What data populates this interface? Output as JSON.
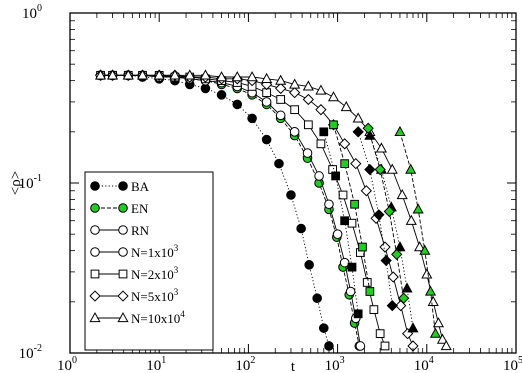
{
  "chart_data": {
    "type": "scatter",
    "xlabel": "t",
    "ylabel": "<ρ>",
    "xscale": "log",
    "yscale": "log",
    "xlim": [
      1,
      100000
    ],
    "ylim": [
      0.01,
      1
    ],
    "x_ticks": [
      {
        "base": "10",
        "exp": "0"
      },
      {
        "base": "10",
        "exp": "1"
      },
      {
        "base": "10",
        "exp": "2"
      },
      {
        "base": "10",
        "exp": "3"
      },
      {
        "base": "10",
        "exp": "4"
      },
      {
        "base": "10",
        "exp": "5"
      }
    ],
    "y_ticks": [
      {
        "base": "10",
        "exp": "-2"
      },
      {
        "base": "10",
        "exp": "-1"
      },
      {
        "base": "10",
        "exp": "0"
      }
    ],
    "legend_position": "bottom-left",
    "series": [
      {
        "name": "BA",
        "marker": "circle",
        "fill": "#000000",
        "line": "dotted",
        "x": [
          2.2,
          3,
          4.5,
          6.5,
          10,
          15,
          22,
          33,
          50,
          75,
          110,
          160,
          220,
          300,
          390,
          480,
          590,
          700,
          800
        ],
        "y": [
          0.43,
          0.43,
          0.43,
          0.42,
          0.41,
          0.4,
          0.38,
          0.36,
          0.33,
          0.29,
          0.24,
          0.18,
          0.13,
          0.085,
          0.054,
          0.033,
          0.021,
          0.014,
          0.011
        ]
      },
      {
        "name": "EN",
        "marker": "circle",
        "fill": "#22cc22",
        "line": "dashed",
        "x": [
          2.2,
          3,
          4.5,
          6.5,
          10,
          15,
          22,
          33,
          50,
          75,
          110,
          160,
          230,
          330,
          460,
          620,
          800,
          980,
          1150,
          1350,
          1550,
          1750
        ],
        "y": [
          0.43,
          0.43,
          0.43,
          0.43,
          0.42,
          0.42,
          0.41,
          0.4,
          0.38,
          0.36,
          0.33,
          0.29,
          0.24,
          0.19,
          0.14,
          0.1,
          0.07,
          0.048,
          0.032,
          0.022,
          0.015,
          0.011
        ]
      },
      {
        "name": "RN",
        "marker": "circle",
        "fill": "#ffffff",
        "line": "solid",
        "x": [
          2.2,
          3,
          4.5,
          6.5,
          10,
          15,
          22,
          33,
          50,
          75,
          110,
          160,
          230,
          330,
          460,
          620,
          800,
          1000,
          1200,
          1400,
          1600,
          1800
        ],
        "y": [
          0.43,
          0.43,
          0.43,
          0.43,
          0.42,
          0.42,
          0.41,
          0.4,
          0.39,
          0.37,
          0.34,
          0.3,
          0.25,
          0.2,
          0.15,
          0.11,
          0.075,
          0.05,
          0.034,
          0.023,
          0.016,
          0.011
        ]
      },
      {
        "name": "N=1x10",
        "name_sup": "3",
        "marker": "circle",
        "fill": "#ffffff",
        "line": "solid",
        "x": [],
        "y": []
      },
      {
        "name": "N=2x10",
        "name_sup": "3",
        "marker": "square",
        "fill": "#ffffff",
        "line": "solid",
        "x": [
          2.2,
          3,
          4.5,
          6.5,
          10,
          15,
          22,
          33,
          50,
          75,
          110,
          160,
          230,
          330,
          470,
          650,
          880,
          1150,
          1450,
          1800,
          2150,
          2550,
          3000,
          3400
        ],
        "y": [
          0.43,
          0.43,
          0.43,
          0.43,
          0.43,
          0.42,
          0.42,
          0.41,
          0.4,
          0.39,
          0.37,
          0.34,
          0.31,
          0.27,
          0.22,
          0.17,
          0.12,
          0.085,
          0.058,
          0.039,
          0.026,
          0.018,
          0.013,
          0.011
        ]
      },
      {
        "name": "N=5x10",
        "name_sup": "3",
        "marker": "diamond",
        "fill": "#ffffff",
        "line": "solid",
        "x": [
          2.2,
          3,
          4.5,
          6.5,
          10,
          15,
          22,
          33,
          50,
          75,
          110,
          160,
          230,
          330,
          470,
          650,
          900,
          1200,
          1600,
          2100,
          2700,
          3400,
          4200,
          5100,
          6100,
          7000
        ],
        "y": [
          0.43,
          0.43,
          0.43,
          0.43,
          0.43,
          0.43,
          0.42,
          0.42,
          0.41,
          0.41,
          0.4,
          0.38,
          0.36,
          0.34,
          0.31,
          0.27,
          0.22,
          0.17,
          0.13,
          0.09,
          0.062,
          0.042,
          0.028,
          0.019,
          0.013,
          0.011
        ]
      },
      {
        "name": "N=10x10",
        "name_sup": "4",
        "marker": "triangle",
        "fill": "#ffffff",
        "line": "solid",
        "x": [
          2.2,
          3,
          4.5,
          6.5,
          10,
          15,
          22,
          33,
          50,
          75,
          110,
          160,
          230,
          330,
          470,
          650,
          900,
          1250,
          1700,
          2300,
          3100,
          4100,
          5300,
          6700,
          8300,
          10000,
          11800,
          13500,
          15000,
          16500
        ],
        "y": [
          0.43,
          0.43,
          0.43,
          0.43,
          0.43,
          0.43,
          0.43,
          0.43,
          0.42,
          0.42,
          0.42,
          0.41,
          0.4,
          0.38,
          0.37,
          0.35,
          0.32,
          0.28,
          0.24,
          0.2,
          0.16,
          0.12,
          0.085,
          0.06,
          0.042,
          0.029,
          0.02,
          0.015,
          0.012,
          0.011
        ]
      },
      {
        "name": "",
        "marker": "triangle",
        "fill": "#000000",
        "line": "dotted",
        "legend": false,
        "x": [
          2300,
          3100,
          4000,
          5000,
          6000,
          7000
        ],
        "y": [
          0.19,
          0.12,
          0.072,
          0.042,
          0.024,
          0.014
        ]
      },
      {
        "name": "",
        "marker": "triangle",
        "fill": "#22cc22",
        "line": "dashed",
        "legend": false,
        "x": [
          5000,
          6600,
          8000,
          9500,
          11000,
          12500
        ],
        "y": [
          0.2,
          0.12,
          0.07,
          0.04,
          0.023,
          0.013
        ]
      },
      {
        "name": "",
        "marker": "square",
        "fill": "#000000",
        "line": "dotted",
        "legend": false,
        "x": [
          700,
          950,
          1200,
          1450,
          1700
        ],
        "y": [
          0.2,
          0.11,
          0.06,
          0.032,
          0.017
        ]
      },
      {
        "name": "",
        "marker": "square",
        "fill": "#22cc22",
        "line": "dashed",
        "legend": false,
        "x": [
          900,
          1200,
          1550,
          1900,
          2300
        ],
        "y": [
          0.22,
          0.13,
          0.075,
          0.042,
          0.023
        ]
      },
      {
        "name": "",
        "marker": "diamond",
        "fill": "#000000",
        "line": "dotted",
        "legend": false,
        "x": [
          1700,
          2300,
          2900,
          3500,
          4100
        ],
        "y": [
          0.2,
          0.12,
          0.065,
          0.035,
          0.019
        ]
      },
      {
        "name": "",
        "marker": "diamond",
        "fill": "#22cc22",
        "line": "dashed",
        "legend": false,
        "x": [
          2200,
          3000,
          3800,
          4600,
          5500
        ],
        "y": [
          0.21,
          0.12,
          0.068,
          0.038,
          0.021
        ]
      }
    ]
  }
}
